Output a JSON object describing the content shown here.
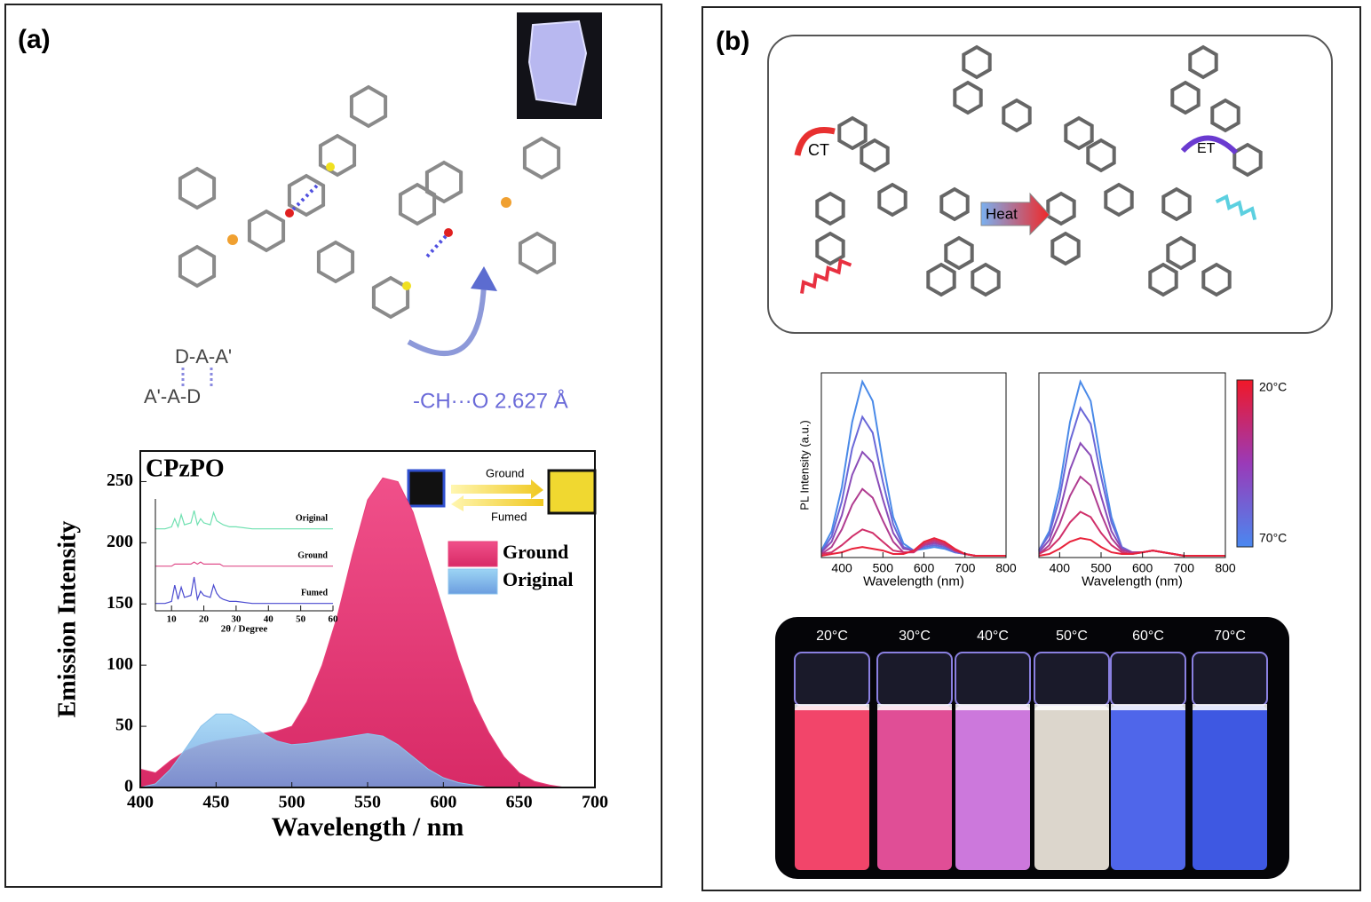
{
  "panel_a": {
    "label": "(a)",
    "motif_top": "D-A-A'",
    "motif_bottom": "A'-A-D",
    "hbond": "-CH···O  2.627 Å",
    "switch_forward": "Ground",
    "switch_back": "Fumed"
  },
  "panel_b": {
    "label": "(b)",
    "ct": "CT",
    "heat": "Heat",
    "et": "ET",
    "colorbar": {
      "top": "20°C",
      "bottom": "70°C"
    },
    "vials": [
      {
        "label": "20°C",
        "color": "#f2456a"
      },
      {
        "label": "30°C",
        "color": "#e04e96"
      },
      {
        "label": "40°C",
        "color": "#cc78dc"
      },
      {
        "label": "50°C",
        "color": "#dcd6cc"
      },
      {
        "label": "60°C",
        "color": "#4f66ea"
      },
      {
        "label": "70°C",
        "color": "#3e58e2"
      }
    ]
  },
  "chart_data": [
    {
      "type": "area",
      "title": "CPzPO",
      "xlabel": "Wavelength / nm",
      "ylabel": "Emission Intensity",
      "x": [
        400,
        410,
        420,
        430,
        440,
        450,
        460,
        470,
        480,
        490,
        500,
        510,
        520,
        530,
        540,
        550,
        560,
        570,
        580,
        590,
        600,
        610,
        620,
        630,
        640,
        650,
        660,
        670,
        680,
        690,
        700
      ],
      "series": [
        {
          "name": "Ground",
          "color": "#e8407a",
          "values": [
            15,
            12,
            22,
            30,
            35,
            38,
            40,
            42,
            44,
            46,
            50,
            70,
            100,
            140,
            190,
            235,
            253,
            250,
            225,
            185,
            145,
            105,
            70,
            45,
            25,
            12,
            5,
            2,
            0,
            0,
            0
          ]
        },
        {
          "name": "Original",
          "color": "#8cc4ec",
          "values": [
            0,
            3,
            15,
            32,
            50,
            60,
            60,
            54,
            45,
            38,
            35,
            36,
            38,
            40,
            42,
            44,
            42,
            35,
            25,
            15,
            8,
            4,
            2,
            0,
            0,
            0,
            0,
            0,
            0,
            0,
            0
          ]
        }
      ],
      "xlim": [
        400,
        700
      ],
      "xticks": [
        400,
        450,
        500,
        550,
        600,
        650,
        700
      ],
      "ylim": [
        0,
        275
      ],
      "yticks": [
        0,
        50,
        100,
        150,
        200,
        250
      ],
      "legend": "right"
    },
    {
      "type": "line",
      "xlabel": "2θ / Degree",
      "x": [
        5,
        8,
        10,
        11,
        12,
        13,
        14,
        16,
        17,
        18,
        19,
        20,
        22,
        23,
        24,
        25,
        26,
        28,
        30,
        35,
        40,
        50,
        60
      ],
      "series": [
        {
          "name": "Original",
          "color": "#6ee0b0",
          "values": [
            1,
            1,
            2,
            6,
            2,
            8,
            3,
            4,
            10,
            3,
            6,
            4,
            3,
            9,
            5,
            4,
            3,
            2,
            2,
            1,
            1,
            1,
            1
          ]
        },
        {
          "name": "Ground",
          "color": "#e0508c",
          "values": [
            1,
            1,
            1,
            2,
            2,
            2,
            2,
            2,
            3,
            2,
            3,
            2,
            2,
            2,
            2,
            2,
            1,
            1,
            1,
            1,
            1,
            1,
            1
          ]
        },
        {
          "name": "Fumed",
          "color": "#4a4ad0",
          "values": [
            1,
            1,
            2,
            10,
            3,
            9,
            4,
            5,
            14,
            3,
            7,
            5,
            4,
            10,
            6,
            4,
            3,
            2,
            2,
            1,
            1,
            1,
            1
          ]
        }
      ],
      "xlim": [
        5,
        60
      ],
      "xticks": [
        10,
        20,
        30,
        40,
        50,
        60
      ]
    },
    {
      "type": "line",
      "xlabel": "Wavelength (nm)",
      "ylabel": "PL Intensity (a.u.)",
      "x": [
        350,
        375,
        400,
        425,
        450,
        475,
        500,
        525,
        550,
        575,
        600,
        625,
        650,
        675,
        700,
        725,
        750,
        775,
        800
      ],
      "series": [
        {
          "color": "#4a8ae8",
          "values": [
            4,
            15,
            40,
            77,
            100,
            89,
            54,
            23,
            8,
            4,
            5,
            6,
            5,
            3,
            2,
            1,
            1,
            1,
            1
          ]
        },
        {
          "color": "#6a68d8",
          "values": [
            3,
            12,
            32,
            62,
            80,
            71,
            43,
            19,
            6,
            4,
            6,
            7,
            6,
            3,
            2,
            1,
            1,
            1,
            1
          ]
        },
        {
          "color": "#8a4cb8",
          "values": [
            3,
            9,
            24,
            47,
            60,
            54,
            33,
            14,
            5,
            4,
            7,
            8,
            7,
            4,
            2,
            1,
            1,
            1,
            1
          ]
        },
        {
          "color": "#b03c90",
          "values": [
            2,
            6,
            16,
            30,
            39,
            34,
            21,
            9,
            3,
            3,
            7,
            9,
            7,
            4,
            2,
            1,
            1,
            1,
            1
          ]
        },
        {
          "color": "#d0306a",
          "values": [
            2,
            3,
            7,
            12,
            16,
            14,
            9,
            4,
            3,
            3,
            8,
            10,
            8,
            4,
            2,
            1,
            1,
            1,
            1
          ]
        },
        {
          "color": "#e8223a",
          "values": [
            1,
            2,
            3,
            5,
            6,
            5,
            4,
            2,
            2,
            4,
            9,
            11,
            9,
            5,
            2,
            1,
            1,
            1,
            1
          ]
        }
      ],
      "xlim": [
        350,
        800
      ],
      "xticks": [
        400,
        500,
        600,
        700,
        800
      ],
      "ylim": [
        0,
        105
      ]
    },
    {
      "type": "line",
      "xlabel": "Wavelength (nm)",
      "x": [
        350,
        375,
        400,
        425,
        450,
        475,
        500,
        525,
        550,
        575,
        600,
        625,
        650,
        675,
        700,
        725,
        750,
        775,
        800
      ],
      "series": [
        {
          "color": "#4a8ae8",
          "values": [
            4,
            15,
            40,
            77,
            100,
            89,
            54,
            23,
            6,
            2,
            3,
            4,
            3,
            2,
            1,
            1,
            1,
            1,
            1
          ]
        },
        {
          "color": "#6a68d8",
          "values": [
            4,
            13,
            34,
            66,
            85,
            76,
            46,
            20,
            6,
            3,
            3,
            4,
            3,
            2,
            1,
            1,
            1,
            1,
            1
          ]
        },
        {
          "color": "#8a4cb8",
          "values": [
            3,
            10,
            26,
            50,
            65,
            58,
            35,
            15,
            5,
            3,
            3,
            4,
            3,
            2,
            1,
            1,
            1,
            1,
            1
          ]
        },
        {
          "color": "#b03c90",
          "values": [
            2,
            7,
            19,
            35,
            46,
            41,
            25,
            11,
            4,
            3,
            3,
            4,
            3,
            2,
            1,
            1,
            1,
            1,
            1
          ]
        },
        {
          "color": "#d0306a",
          "values": [
            2,
            5,
            11,
            20,
            26,
            23,
            14,
            7,
            3,
            2,
            3,
            4,
            3,
            2,
            1,
            1,
            1,
            1,
            1
          ]
        },
        {
          "color": "#e8223a",
          "values": [
            1,
            2,
            5,
            9,
            11,
            10,
            6,
            3,
            2,
            2,
            3,
            4,
            3,
            2,
            1,
            1,
            1,
            1,
            1
          ]
        }
      ],
      "xlim": [
        350,
        800
      ],
      "xticks": [
        400,
        500,
        600,
        700,
        800
      ],
      "ylim": [
        0,
        105
      ]
    }
  ]
}
